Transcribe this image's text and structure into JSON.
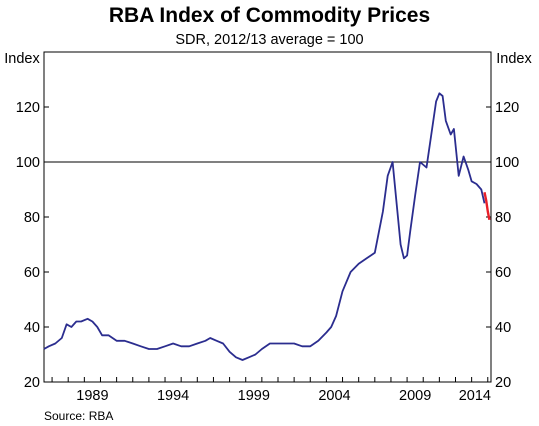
{
  "chart_data": {
    "type": "line",
    "title": "RBA Index of Commodity Prices",
    "subtitle": "SDR, 2012/13 average = 100",
    "ylabel_left": "Index",
    "ylabel_right": "Index",
    "source": "Source: RBA",
    "ylim": [
      20,
      140
    ],
    "xlim": [
      1986.5,
      2014.2
    ],
    "y_ticks": [
      "20",
      "40",
      "60",
      "80",
      "100",
      "120"
    ],
    "x_ticks": [
      "1989",
      "1994",
      "1999",
      "2004",
      "2009",
      "2014"
    ],
    "reference_line": 100,
    "grid": false,
    "colors": {
      "main": "#2b2d8f",
      "highlight": "#e8202a",
      "reference": "#000000"
    },
    "series": [
      {
        "values_x": [
          1986.5,
          1986.8,
          1987.2,
          1987.6,
          1987.9,
          1988.2,
          1988.5,
          1988.8,
          1989.2,
          1989.5,
          1989.8,
          1990.1,
          1990.5,
          1991.0,
          1991.5,
          1992.0,
          1992.5,
          1993.0,
          1993.5,
          1994.0,
          1994.5,
          1995.0,
          1995.5,
          1996.0,
          1996.5,
          1996.8,
          1997.2,
          1997.6,
          1998.0,
          1998.4,
          1998.8,
          1999.2,
          1999.6,
          2000.0,
          2000.5,
          2001.0,
          2001.5,
          2002.0,
          2002.5,
          2003.0,
          2003.5,
          2004.0,
          2004.3,
          2004.6,
          2005.0,
          2005.5,
          2006.0,
          2006.5,
          2007.0,
          2007.5,
          2007.8,
          2008.1,
          2008.4,
          2008.6,
          2008.8,
          2009.0,
          2009.2,
          2009.5,
          2009.8,
          2010.2,
          2010.5,
          2010.8,
          2011.0,
          2011.2,
          2011.4,
          2011.7,
          2011.9,
          2012.2,
          2012.5,
          2012.8,
          2013.0,
          2013.3,
          2013.6,
          2013.8
        ],
        "values_y": [
          32,
          33,
          34,
          36,
          41,
          40,
          42,
          42,
          43,
          42,
          40,
          37,
          37,
          35,
          35,
          34,
          33,
          32,
          32,
          33,
          34,
          33,
          33,
          34,
          35,
          36,
          35,
          34,
          31,
          29,
          28,
          29,
          30,
          32,
          34,
          34,
          34,
          34,
          33,
          33,
          35,
          38,
          40,
          44,
          53,
          60,
          63,
          65,
          67,
          82,
          95,
          100,
          82,
          70,
          65,
          66,
          75,
          88,
          100,
          98,
          110,
          122,
          125,
          124,
          115,
          110,
          112,
          95,
          102,
          97,
          93,
          92,
          90,
          85
        ]
      },
      {
        "values_x": [
          2013.8,
          2013.9,
          2014.0,
          2014.1
        ],
        "values_y": [
          89,
          86,
          82,
          79
        ]
      }
    ]
  }
}
